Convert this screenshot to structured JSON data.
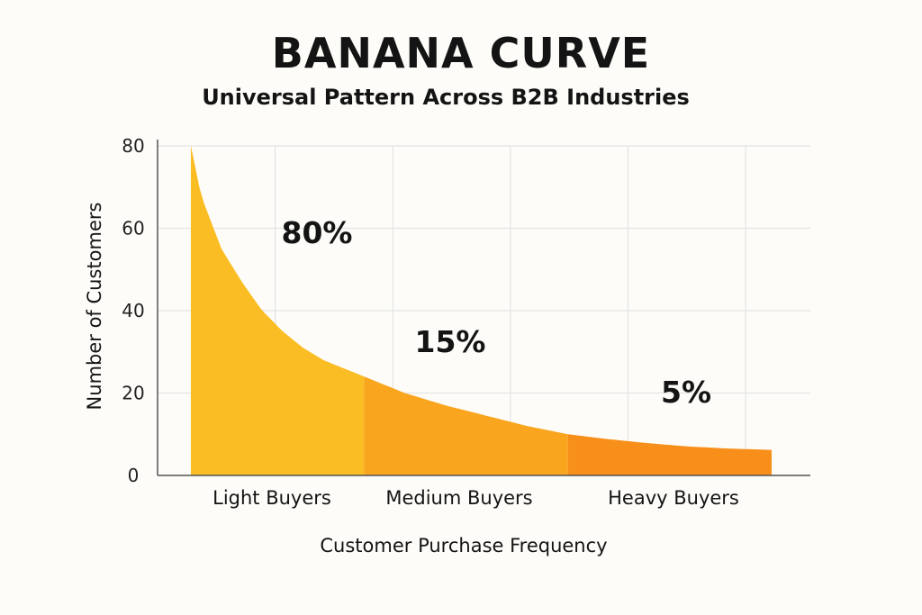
{
  "chart_data": {
    "type": "area",
    "title": "BANANA CURVE",
    "subtitle": "Universal Pattern Across B2B Industries",
    "xlabel": "Customer Purchase Frequency",
    "ylabel": "Number of Customers",
    "ylim": [
      0,
      80
    ],
    "yticks": [
      0,
      20,
      40,
      60,
      80
    ],
    "grid": true,
    "categories": [
      "Light Buyers",
      "Medium Buyers",
      "Heavy Buyers"
    ],
    "segments": [
      {
        "category": "Light Buyers",
        "share_label": "80%",
        "color": "#fbbd24",
        "x_range": [
          0.15,
          1.0
        ]
      },
      {
        "category": "Medium Buyers",
        "share_label": "15%",
        "color": "#f9a51e",
        "x_range": [
          1.0,
          2.0
        ]
      },
      {
        "category": "Heavy Buyers",
        "share_label": "5%",
        "color": "#f78f1a",
        "x_range": [
          2.0,
          3.0
        ]
      }
    ],
    "curve": {
      "x": [
        0.15,
        0.2,
        0.3,
        0.4,
        0.5,
        0.6,
        0.7,
        0.8,
        0.9,
        1.0,
        1.2,
        1.4,
        1.6,
        1.8,
        2.0,
        2.2,
        2.4,
        2.6,
        2.8,
        3.0
      ],
      "y": [
        80,
        68,
        55,
        47,
        40,
        35,
        31,
        28,
        26,
        24,
        20,
        17,
        14.5,
        12,
        10,
        8.8,
        7.8,
        7.0,
        6.5,
        6.2
      ]
    }
  }
}
